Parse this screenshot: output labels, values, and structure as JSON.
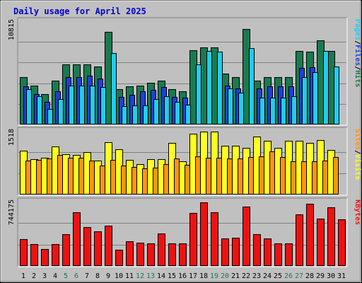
{
  "chart_data": {
    "type": "bar",
    "title": "Daily usage for April 2025",
    "colors": {
      "hits": "#1a7a4f",
      "files": "#1f3fdd",
      "pages": "#22ccee",
      "visits": "#ffff22",
      "sites": "#ff9410",
      "kbytes": "#ee1111",
      "weekday": "#000000",
      "weekend": "#1a7a4f",
      "panel": "#c0c0c0"
    },
    "categories": [
      "1",
      "2",
      "3",
      "4",
      "5",
      "6",
      "7",
      "8",
      "9",
      "10",
      "11",
      "12",
      "13",
      "14",
      "15",
      "16",
      "17",
      "18",
      "19",
      "20",
      "21",
      "22",
      "23",
      "24",
      "25",
      "26",
      "27",
      "28",
      "29",
      "30",
      "31"
    ],
    "weekend_days": [
      "5",
      "6",
      "12",
      "13",
      "19",
      "20",
      "26",
      "27"
    ],
    "panels": [
      {
        "name": "hits-files-pages",
        "ymax": 10815,
        "ymax_label": "10815",
        "legend": [
          {
            "text": "Hits",
            "color_key": "hits"
          },
          {
            "text": "/",
            "color_key": "weekday"
          },
          {
            "text": "Files",
            "color_key": "files"
          },
          {
            "text": "/",
            "color_key": "weekday"
          },
          {
            "text": "Pages",
            "color_key": "pages"
          }
        ],
        "series": [
          {
            "name": "Hits",
            "color_key": "hits",
            "values": [
              5000,
              4100,
              3200,
              4600,
              6300,
              6300,
              6300,
              6100,
              9700,
              3700,
              4000,
              4100,
              4400,
              4600,
              3700,
              3500,
              7800,
              8100,
              8100,
              5300,
              5000,
              10000,
              4600,
              5000,
              5000,
              5000,
              7700,
              7600,
              8800,
              7700,
              0
            ]
          },
          {
            "name": "Files",
            "color_key": "files",
            "values": [
              4000,
              3200,
              2400,
              3500,
              5000,
              5000,
              5100,
              4800,
              0,
              2900,
              3100,
              3500,
              3600,
              3900,
              2900,
              2800,
              0,
              0,
              0,
              4100,
              3800,
              0,
              3800,
              4000,
              4000,
              4000,
              5900,
              6000,
              0,
              0,
              0
            ]
          },
          {
            "name": "Pages",
            "color_key": "pages",
            "values": [
              3700,
              3000,
              1600,
              2700,
              4100,
              4100,
              4100,
              3900,
              7500,
              1900,
              2000,
              2000,
              2700,
              3000,
              2400,
              2100,
              6300,
              7700,
              7600,
              3800,
              3300,
              8000,
              2800,
              2800,
              2800,
              3000,
              5000,
              5500,
              7700,
              6100,
              0
            ]
          }
        ]
      },
      {
        "name": "visits-sites",
        "ymax": 1518,
        "ymax_label": "1518",
        "legend": [
          {
            "text": "Visits",
            "color_key": "visits"
          },
          {
            "text": "/",
            "color_key": "weekday"
          },
          {
            "text": "Sites",
            "color_key": "sites"
          }
        ],
        "series": [
          {
            "name": "Visits",
            "color_key": "visits",
            "values": [
              1050,
              850,
              880,
              1140,
              960,
              950,
              1020,
              810,
              1240,
              1080,
              830,
              720,
              850,
              850,
              1230,
              800,
              1450,
              1500,
              1500,
              1160,
              1160,
              1110,
              1380,
              1290,
              1110,
              1290,
              1290,
              1230,
              1300,
              1060,
              0
            ]
          },
          {
            "name": "Sites",
            "color_key": "sites",
            "values": [
              810,
              830,
              860,
              950,
              880,
              880,
              810,
              690,
              830,
              690,
              650,
              620,
              640,
              730,
              860,
              700,
              910,
              870,
              880,
              860,
              860,
              900,
              910,
              1030,
              900,
              790,
              800,
              790,
              810,
              890,
              0
            ]
          }
        ]
      },
      {
        "name": "kbytes",
        "ymax": 744175,
        "ymax_label": "744175",
        "legend": [
          {
            "text": "KBytes",
            "color_key": "kbytes"
          }
        ],
        "series": [
          {
            "name": "KBytes",
            "color_key": "kbytes",
            "values": [
              310000,
              250000,
              200000,
              250000,
              370000,
              620000,
              450000,
              400000,
              470000,
              190000,
              290000,
              270000,
              260000,
              380000,
              260000,
              260000,
              610000,
              740000,
              620000,
              320000,
              330000,
              690000,
              370000,
              320000,
              260000,
              260000,
              600000,
              720000,
              550000,
              680000,
              540000
            ]
          }
        ]
      }
    ]
  }
}
